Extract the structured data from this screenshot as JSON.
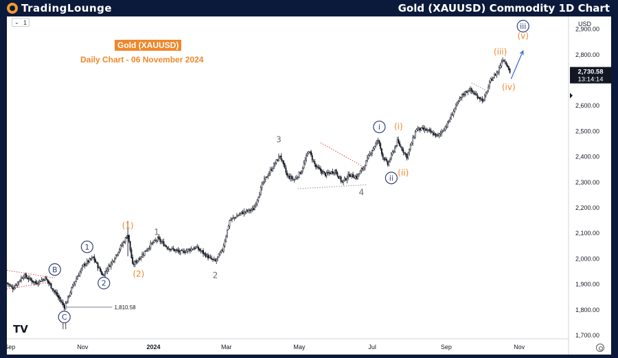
{
  "header": {
    "logo_text": "TradingLounge",
    "title": "Gold (XAUUSD) Commodity 1D Chart"
  },
  "toolbar": {
    "interval_label": "1",
    "interval_icon": "chevron-down-icon"
  },
  "legend": {
    "title": "Gold (XAUUSD)",
    "subtitle": "Daily Chart - 06 November 2024"
  },
  "price_axis": {
    "currency": "USD",
    "last_price": "2,730.58",
    "countdown": "13:14:14"
  },
  "branding": {
    "tv_logo": "TV"
  },
  "colors": {
    "accent": "#f0872a",
    "wave_blue": "#2f3f7a",
    "wave_gray": "#6b6b6b",
    "candle": "#131722"
  },
  "chart_data": {
    "type": "candlestick",
    "symbol": "XAUUSD",
    "timeframe": "1D",
    "ylim": [
      1700,
      2950
    ],
    "y_ticks": [
      1700,
      1800,
      1900,
      2000,
      2100,
      2200,
      2300,
      2400,
      2500,
      2600,
      2700,
      2800,
      2900
    ],
    "y_tick_labels": [
      "1,700.00",
      "1,800.00",
      "1,900.00",
      "2,000.00",
      "2,100.00",
      "2,200.00",
      "2,300.00",
      "2,400.00",
      "2,500.00",
      "2,600.00",
      "2,700.00",
      "2,800.00",
      "2,900.00"
    ],
    "x_ticks": [
      {
        "label": "Sep",
        "t": 2.4
      },
      {
        "label": "Nov",
        "t": 63.3
      },
      {
        "label": "2024",
        "t": 122.4
      },
      {
        "label": "Mar",
        "t": 183.3
      },
      {
        "label": "May",
        "t": 244.2
      },
      {
        "label": "Jul",
        "t": 305.1
      },
      {
        "label": "Sep",
        "t": 366.9
      },
      {
        "label": "Nov",
        "t": 427.8
      }
    ],
    "t_range": [
      0,
      469
    ],
    "price_path": [
      [
        0,
        1905
      ],
      [
        5,
        1885
      ],
      [
        14,
        1935
      ],
      [
        24,
        1905
      ],
      [
        32,
        1925
      ],
      [
        40,
        1870
      ],
      [
        48,
        1812
      ],
      [
        56,
        1905
      ],
      [
        64,
        1975
      ],
      [
        72,
        2005
      ],
      [
        80,
        1935
      ],
      [
        88,
        1990
      ],
      [
        96,
        2055
      ],
      [
        101,
        2095
      ],
      [
        105,
        1975
      ],
      [
        111,
        2005
      ],
      [
        120,
        2055
      ],
      [
        126,
        2078
      ],
      [
        134,
        2045
      ],
      [
        145,
        2025
      ],
      [
        158,
        2045
      ],
      [
        170,
        2000
      ],
      [
        174,
        1990
      ],
      [
        180,
        2035
      ],
      [
        186,
        2150
      ],
      [
        196,
        2180
      ],
      [
        206,
        2195
      ],
      [
        214,
        2300
      ],
      [
        222,
        2360
      ],
      [
        228,
        2405
      ],
      [
        234,
        2325
      ],
      [
        240,
        2310
      ],
      [
        246,
        2345
      ],
      [
        252,
        2425
      ],
      [
        258,
        2360
      ],
      [
        266,
        2330
      ],
      [
        274,
        2345
      ],
      [
        280,
        2300
      ],
      [
        286,
        2330
      ],
      [
        292,
        2320
      ],
      [
        298,
        2360
      ],
      [
        304,
        2420
      ],
      [
        310,
        2465
      ],
      [
        314,
        2400
      ],
      [
        318,
        2370
      ],
      [
        322,
        2415
      ],
      [
        326,
        2460
      ],
      [
        334,
        2400
      ],
      [
        342,
        2510
      ],
      [
        350,
        2505
      ],
      [
        360,
        2480
      ],
      [
        368,
        2530
      ],
      [
        374,
        2590
      ],
      [
        380,
        2640
      ],
      [
        386,
        2665
      ],
      [
        392,
        2640
      ],
      [
        398,
        2620
      ],
      [
        404,
        2700
      ],
      [
        410,
        2735
      ],
      [
        414,
        2785
      ],
      [
        418,
        2760
      ],
      [
        420,
        2730
      ]
    ],
    "wave_labels": [
      {
        "text": "B",
        "t": 40,
        "price": 1958,
        "style": "circle-blue"
      },
      {
        "text": "C",
        "t": 48,
        "price": 1772,
        "style": "circle-blue"
      },
      {
        "text": "II",
        "t": 48,
        "price": 1735,
        "style": "gray-roman"
      },
      {
        "text": "1",
        "t": 67,
        "price": 2047,
        "style": "circle-blue"
      },
      {
        "text": "2",
        "t": 81,
        "price": 1905,
        "style": "circle-blue"
      },
      {
        "text": "(1)",
        "t": 101,
        "price": 2130,
        "style": "orange"
      },
      {
        "text": "(2)",
        "t": 110,
        "price": 1940,
        "style": "orange"
      },
      {
        "text": "1",
        "t": 125,
        "price": 2105,
        "style": "gray"
      },
      {
        "text": "2",
        "t": 174,
        "price": 1935,
        "style": "gray"
      },
      {
        "text": "3",
        "t": 227,
        "price": 2468,
        "style": "gray"
      },
      {
        "text": "4",
        "t": 296,
        "price": 2260,
        "style": "gray"
      },
      {
        "text": "i",
        "t": 311,
        "price": 2517,
        "style": "circle-blue"
      },
      {
        "text": "ii",
        "t": 321,
        "price": 2317,
        "style": "circle-blue"
      },
      {
        "text": "(i)",
        "t": 327,
        "price": 2518,
        "style": "orange"
      },
      {
        "text": "(ii)",
        "t": 331,
        "price": 2337,
        "style": "orange"
      },
      {
        "text": "(iii)",
        "t": 412,
        "price": 2812,
        "style": "orange"
      },
      {
        "text": "(iv)",
        "t": 419,
        "price": 2673,
        "style": "orange"
      },
      {
        "text": "iii",
        "t": 431,
        "price": 2912,
        "style": "circle-blue"
      },
      {
        "text": "(v)",
        "t": 431,
        "price": 2873,
        "style": "orange"
      }
    ],
    "level_marker": {
      "price": 1810.58,
      "label": "1,810.58",
      "t_start": 48,
      "t_end": 88
    },
    "trendlines": [
      {
        "kind": "dotted-red",
        "from": [
          0,
          1955
        ],
        "to": [
          40,
          1925
        ]
      },
      {
        "kind": "dotted-red",
        "from": [
          0,
          1882
        ],
        "to": [
          38,
          1910
        ]
      },
      {
        "kind": "dotted-red",
        "from": [
          262,
          2455
        ],
        "to": [
          300,
          2355
        ]
      },
      {
        "kind": "dotted-gray",
        "from": [
          243,
          2275
        ],
        "to": [
          300,
          2290
        ]
      },
      {
        "kind": "dotted-gray",
        "from": [
          388,
          2690
        ],
        "to": [
          400,
          2660
        ]
      }
    ],
    "projection_arrow": {
      "from": [
        421,
        2705
      ],
      "to": [
        431,
        2815
      ]
    }
  }
}
